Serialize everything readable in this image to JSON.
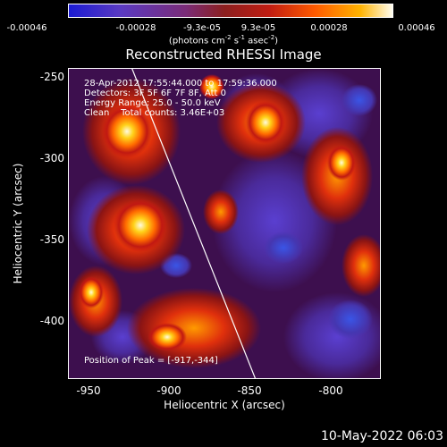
{
  "colorbar": {
    "tick_labels": [
      "-0.00046",
      "-0.00028",
      "-9.3e-05",
      "9.3e-05",
      "0.00028",
      "0.00046"
    ],
    "units_text": "(photons cm",
    "units_exp1": "-2",
    "units_mid": " s",
    "units_exp2": "-1",
    "units_mid2": " asec",
    "units_exp3": "-2",
    "units_end": ")"
  },
  "title": "Reconstructed RHESSI Image",
  "overlay": {
    "line1": "28-Apr-2012 17:55:44.000 to 17:59:36.000",
    "line2": "Detectors: 3F 5F 6F 7F 8F, Att 0",
    "line3": "Energy Range: 25.0 - 50.0 keV",
    "line4": "Clean    Total counts: 3.46E+03",
    "peak": "Position of Peak = [-917,-344]"
  },
  "y_axis": {
    "label": "Heliocentric Y (arcsec)",
    "ticks": [
      "-250",
      "-300",
      "-350",
      "-400"
    ]
  },
  "x_axis": {
    "label": "Heliocentric X (arcsec)",
    "ticks": [
      "-950",
      "-900",
      "-850",
      "-800"
    ]
  },
  "timestamp": "10-May-2022 06:03"
}
